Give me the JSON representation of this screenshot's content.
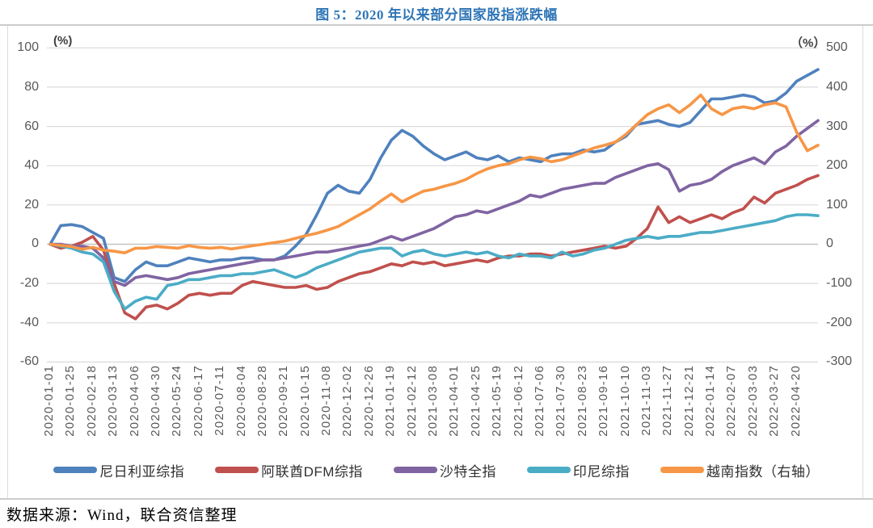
{
  "title": "图 5：2020 年以来部分国家股指涨跌幅",
  "source_note": "数据来源：Wind，联合资信整理",
  "colors": {
    "title_text": "#2E75B6",
    "axis_text": "#595959",
    "grid_line": "#DADADA",
    "zero_line": "#C3C3C3",
    "frame_border": "#CCCCCC",
    "background": "#FFFFFF"
  },
  "chart_data": {
    "type": "line",
    "title": "图 5：2020 年以来部分国家股指涨跌幅",
    "grid": true,
    "legend_position": "bottom",
    "x_start_date": "2020-01-01",
    "x_point_step_days": 12,
    "left_axis": {
      "unit_label": "(%)",
      "min": -60,
      "max": 100,
      "tick_values": [
        100,
        80,
        60,
        40,
        20,
        0,
        -20,
        -40,
        -60
      ]
    },
    "right_axis": {
      "unit_label": "（%）",
      "min": -300,
      "max": 500,
      "tick_values": [
        500,
        400,
        300,
        200,
        100,
        0,
        -100,
        -200,
        -300
      ]
    },
    "x_tick_labels": [
      "2020-01-01",
      "2020-01-25",
      "2020-02-18",
      "2020-03-13",
      "2020-04-06",
      "2020-04-30",
      "2020-05-24",
      "2020-06-17",
      "2020-07-11",
      "2020-08-04",
      "2020-08-28",
      "2020-09-21",
      "2020-10-15",
      "2020-11-08",
      "2020-12-02",
      "2020-12-26",
      "2021-01-19",
      "2021-02-12",
      "2021-03-08",
      "2021-04-01",
      "2021-04-25",
      "2021-05-19",
      "2021-06-12",
      "2021-07-06",
      "2021-07-30",
      "2021-08-23",
      "2021-09-16",
      "2021-10-10",
      "2021-11-03",
      "2021-11-27",
      "2021-12-21",
      "2022-01-14",
      "2022-02-07",
      "2022-03-03",
      "2022-03-27",
      "2022-04-20"
    ],
    "series": [
      {
        "name": "尼日利亚综指",
        "color": "#4F81BD",
        "axis": "left",
        "values": [
          0,
          9.5,
          10,
          9,
          6,
          3,
          -17,
          -19,
          -13,
          -9,
          -11,
          -11,
          -9,
          -7,
          -8,
          -9,
          -8,
          -8,
          -7,
          -7,
          -8,
          -8,
          -6,
          -1,
          5,
          15,
          26,
          30,
          27,
          26,
          33,
          44,
          53,
          58,
          55,
          50,
          46,
          43,
          45,
          47,
          44,
          43,
          45,
          42,
          44,
          43,
          42,
          45,
          46,
          46,
          48,
          47,
          48,
          52,
          55,
          61,
          62,
          63,
          61,
          60,
          62,
          68,
          74,
          74,
          75,
          76,
          75,
          72,
          73,
          77,
          83,
          86,
          89
        ]
      },
      {
        "name": "阿联酋DFM综指",
        "color": "#C0504D",
        "axis": "left",
        "values": [
          0,
          -2,
          -1,
          1,
          4,
          -3,
          -20,
          -35,
          -38,
          -32,
          -31,
          -33,
          -30,
          -26,
          -25,
          -26,
          -25,
          -25,
          -21,
          -19,
          -20,
          -21,
          -22,
          -22,
          -21,
          -23,
          -22,
          -19,
          -17,
          -15,
          -14,
          -12,
          -10,
          -11,
          -9,
          -10,
          -9,
          -11,
          -10,
          -9,
          -8,
          -9,
          -7,
          -6,
          -6,
          -5,
          -5,
          -6,
          -5,
          -4,
          -3,
          -2,
          -1,
          -2,
          -1,
          3,
          8,
          19,
          11,
          14,
          11,
          13,
          15,
          13,
          16,
          18,
          24,
          21,
          26,
          28,
          30,
          33,
          35
        ]
      },
      {
        "name": "沙特全指",
        "color": "#8064A2",
        "axis": "left",
        "values": [
          0,
          0,
          -1,
          -1,
          -2,
          -7,
          -19,
          -21,
          -17,
          -16,
          -17,
          -18,
          -17,
          -15,
          -14,
          -13,
          -12,
          -11,
          -10,
          -9,
          -8,
          -8,
          -7,
          -6,
          -5,
          -4,
          -4,
          -3,
          -2,
          -1,
          0,
          2,
          4,
          2,
          4,
          6,
          8,
          11,
          14,
          15,
          17,
          16,
          18,
          20,
          22,
          25,
          24,
          26,
          28,
          29,
          30,
          31,
          31,
          34,
          36,
          38,
          40,
          41,
          38,
          27,
          30,
          31,
          33,
          37,
          40,
          42,
          44,
          41,
          47,
          50,
          55,
          59,
          63
        ]
      },
      {
        "name": "印尼综指",
        "color": "#4BACC6",
        "axis": "left",
        "values": [
          0,
          -1,
          -2,
          -4,
          -5,
          -9,
          -24,
          -33,
          -29,
          -27,
          -28,
          -21,
          -20,
          -18,
          -18,
          -17,
          -16,
          -16,
          -15,
          -15,
          -14,
          -13,
          -15,
          -17,
          -15,
          -12,
          -10,
          -8,
          -6,
          -4,
          -3,
          -2,
          -2,
          -6,
          -4,
          -3,
          -5,
          -6,
          -5,
          -4,
          -5,
          -4,
          -6,
          -7,
          -5,
          -6,
          -6,
          -7,
          -4,
          -6,
          -5,
          -3,
          -2,
          0,
          2,
          3,
          4,
          3,
          4,
          4,
          5,
          6,
          6,
          7,
          8,
          9,
          10,
          11,
          12,
          14,
          15,
          15,
          14.5
        ]
      },
      {
        "name": "越南指数（右轴）",
        "color": "#F79646",
        "axis": "right",
        "values": [
          0,
          -3,
          -6,
          -13,
          -8,
          -15,
          -18,
          -22,
          -10,
          -10,
          -6,
          -8,
          -10,
          -4,
          -8,
          -10,
          -8,
          -12,
          -8,
          -4,
          0,
          4,
          8,
          15,
          22,
          28,
          36,
          45,
          60,
          75,
          90,
          110,
          128,
          108,
          122,
          135,
          140,
          148,
          155,
          165,
          180,
          192,
          200,
          205,
          215,
          222,
          218,
          210,
          215,
          225,
          235,
          245,
          252,
          260,
          280,
          305,
          330,
          345,
          355,
          335,
          355,
          380,
          345,
          330,
          345,
          350,
          345,
          355,
          360,
          350,
          285,
          238,
          252
        ]
      }
    ]
  }
}
